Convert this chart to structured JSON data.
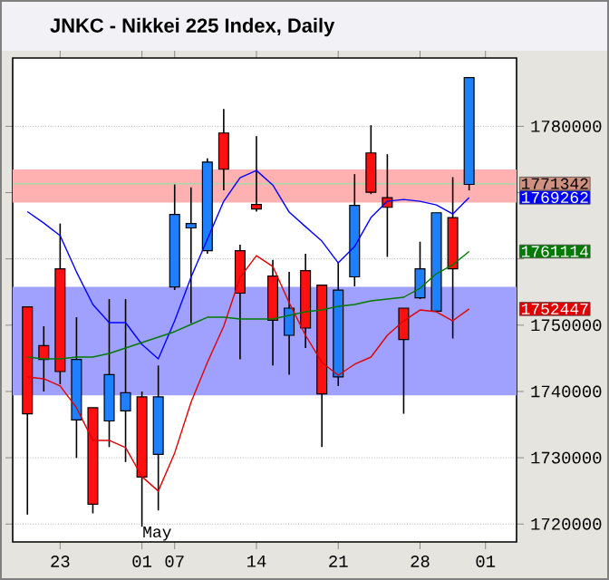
{
  "chart_data": {
    "type": "candlestick",
    "title": "JNKC - Nikkei 225 Index, Daily",
    "categories": [
      null,
      null,
      "23",
      null,
      null,
      null,
      null,
      "01",
      null,
      "07",
      null,
      null,
      null,
      null,
      "14",
      null,
      null,
      null,
      null,
      "21",
      null,
      null,
      null,
      null,
      "28",
      null,
      null,
      null,
      "01"
    ],
    "ohlc": [
      [
        1752760,
        1752760,
        1721420,
        1736640
      ],
      [
        1746910,
        1749840,
        1740000,
        1744840
      ],
      [
        1758500,
        1765330,
        1741090,
        1743000
      ],
      [
        1735710,
        1751200,
        1729970,
        1744840
      ],
      [
        1737540,
        1737540,
        1721610,
        1722980
      ],
      [
        1735550,
        1753930,
        1731610,
        1742540
      ],
      [
        1737080,
        1753930,
        1729350,
        1739810
      ],
      [
        1739180,
        1740000,
        1719590,
        1727080
      ],
      [
        1730520,
        1743910,
        1722050,
        1739180
      ],
      [
        1755760,
        1771230,
        1755300,
        1766690
      ],
      [
        1764670,
        1770790,
        1750300,
        1765330
      ],
      [
        1761230,
        1775160,
        1760760,
        1774610
      ],
      [
        1778990,
        1782620,
        1770330,
        1773520
      ],
      [
        1761230,
        1762130,
        1744840,
        1754830
      ],
      [
        1768220,
        1778520,
        1767130,
        1767510
      ],
      [
        1757400,
        1759860,
        1743910,
        1750740
      ],
      [
        1748470,
        1758030,
        1742540,
        1752570
      ],
      [
        1758220,
        1760760,
        1746560,
        1749560
      ],
      [
        1756040,
        1756120,
        1731610,
        1739640
      ],
      [
        1742190,
        1759400,
        1740820,
        1755300
      ],
      [
        1757290,
        1772780,
        1755850,
        1768060
      ],
      [
        1775980,
        1780160,
        1769780,
        1770050
      ],
      [
        1769230,
        1775790,
        1760300,
        1767780
      ],
      [
        1752570,
        1752570,
        1736640,
        1747840
      ],
      [
        1754120,
        1762590,
        1753930,
        1758500
      ],
      [
        1752100,
        1766960,
        1752100,
        1766960
      ],
      [
        1766230,
        1772320,
        1748000,
        1758500
      ],
      [
        1771230,
        1787350,
        1770330,
        1787350
      ],
      null
    ],
    "series": [
      {
        "type": "line",
        "color": "#0000ff",
        "values": [
          1767130,
          1765410,
          1763500,
          1758030,
          1753110,
          1750380,
          1750380,
          1747100,
          1744920,
          1750650,
          1757210,
          1762950,
          1768690,
          1772240,
          1773330,
          1771140,
          1767050,
          1764860,
          1762680,
          1759400,
          1761860,
          1766230,
          1768690,
          1768960,
          1768690,
          1768140,
          1766770,
          1769262,
          null
        ]
      },
      {
        "type": "line",
        "color": "#e00000",
        "values": [
          1742190,
          1741910,
          1740820,
          1737540,
          1732620,
          1732620,
          1731530,
          1727160,
          1724970,
          1730710,
          1738360,
          1744370,
          1749840,
          1757210,
          1760490,
          1758850,
          1753390,
          1748470,
          1744370,
          1742460,
          1744100,
          1745190,
          1748470,
          1750650,
          1752290,
          1752020,
          1750650,
          1752447,
          null
        ]
      },
      {
        "type": "line",
        "color": "#007a00",
        "values": [
          1745190,
          1744920,
          1744920,
          1745190,
          1745190,
          1745740,
          1746560,
          1747380,
          1748200,
          1749020,
          1750110,
          1751200,
          1751200,
          1750930,
          1750930,
          1750930,
          1751470,
          1752020,
          1752290,
          1752840,
          1753110,
          1753660,
          1753930,
          1754210,
          1755570,
          1757760,
          1759120,
          1761114,
          null
        ]
      }
    ],
    "ylim": [
      1717300,
      1790300
    ],
    "yticks": [
      1720000,
      1730000,
      1740000,
      1750000,
      {
        "value": 1760000,
        "label": null
      },
      {
        "value": 1770000,
        "label": null
      },
      1780000
    ],
    "grid": "y",
    "ref_lines": [
      {
        "axis": "y",
        "value": 1771342,
        "label": "1771342",
        "color": "#a8d8a8"
      }
    ],
    "bands": [
      {
        "axis": "y",
        "from": 1768500,
        "to": 1773500,
        "color": "#ffb0b0"
      },
      {
        "axis": "y",
        "from": 1739400,
        "to": 1755800,
        "color": "#a0a0ff"
      }
    ],
    "annotations": [
      "May",
      "1769262",
      "1752447",
      "1761114"
    ]
  }
}
